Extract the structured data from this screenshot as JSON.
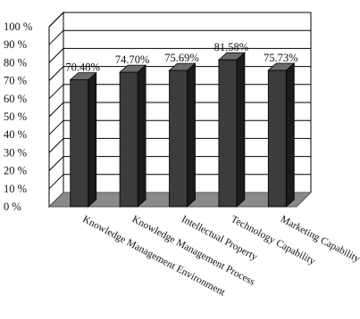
{
  "chart_data": {
    "type": "bar",
    "categories": [
      "Knowledge Management Environment",
      "Knowledge Management Process",
      "Intellectual Property",
      "Technology Capability",
      "Marketing Capability"
    ],
    "values": [
      70.48,
      74.7,
      75.69,
      81.58,
      75.73
    ],
    "data_labels": [
      "70.48%",
      "74.70%",
      "75.69%",
      "81.58%",
      "75.73%"
    ],
    "y_ticks": [
      "0 %",
      "10 %",
      "20 %",
      "30 %",
      "40 %",
      "50 %",
      "60 %",
      "70 %",
      "80 %",
      "90 %",
      "100 %"
    ],
    "ylim": [
      0,
      100
    ],
    "grid": true,
    "legend": "none",
    "style": "3d",
    "colors": {
      "bar_front": "#3c3c3c",
      "bar_side": "#1c1c1c",
      "bar_top": "#6a6a6a",
      "floor": "#8a8a8a",
      "grid": "#000000"
    }
  }
}
